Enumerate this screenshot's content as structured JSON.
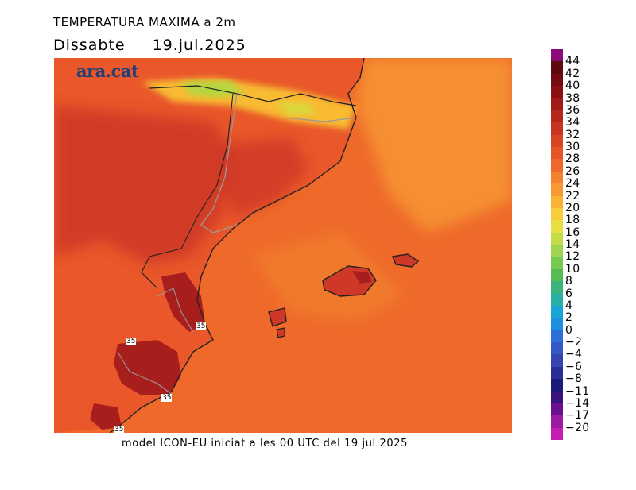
{
  "header": {
    "title": "TEMPERATURA MAXIMA a 2m",
    "day": "Dissabte",
    "date": "19.jul.2025"
  },
  "map": {
    "brand": "ara.cat",
    "contour_labels": [
      "35",
      "35",
      "35",
      "35",
      "35"
    ],
    "colors": {
      "sea_warm": "#ef6a2a",
      "sea_cool": "#f58f30",
      "land_orange": "#e9572a",
      "land_hot": "#cf3826",
      "land_very_hot": "#a81e1c",
      "mountain_cool": "#f8bb33",
      "mountain_green": "#b6d640",
      "coastline": "#222222",
      "border": "#9a9a9a"
    }
  },
  "footer": {
    "model_text": "model ICON-EU iniciat a les 00 UTC del 19 jul 2025"
  },
  "legend": {
    "labels": [
      "44",
      "42",
      "40",
      "38",
      "36",
      "34",
      "32",
      "30",
      "28",
      "26",
      "24",
      "22",
      "20",
      "18",
      "16",
      "14",
      "12",
      "10",
      "8",
      "6",
      "4",
      "2",
      "0",
      "−2",
      "−4",
      "−6",
      "−8",
      "−11",
      "−14",
      "−17",
      "−20"
    ],
    "colors": [
      "#8a0a78",
      "#5c0a12",
      "#740a12",
      "#8c0f14",
      "#a11a18",
      "#b6261c",
      "#c83422",
      "#d84426",
      "#e55528",
      "#ee692a",
      "#f3812d",
      "#f79932",
      "#f8b336",
      "#f7cd3b",
      "#e8df42",
      "#c4dc48",
      "#9dd54e",
      "#78c94f",
      "#55bb55",
      "#3ab47a",
      "#28b0a6",
      "#1aa6d4",
      "#1f8fe0",
      "#2d6fd8",
      "#3458c8",
      "#3645b0",
      "#2a2f98",
      "#1b1a7a",
      "#3a127c",
      "#6a0f8e",
      "#9c1aa0",
      "#c41db0"
    ]
  }
}
